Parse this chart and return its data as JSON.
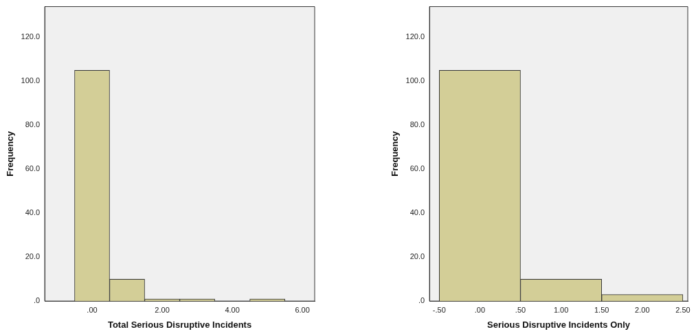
{
  "chart_data": [
    {
      "type": "histogram",
      "xlabel": "Total Serious Disruptive Incidents",
      "ylabel": "Frequency",
      "bins": [
        -0.5,
        0.5,
        1.5,
        2.5,
        3.5,
        4.5,
        5.5
      ],
      "values": [
        105,
        10,
        1,
        1,
        0,
        1
      ],
      "color": "#d3ce97",
      "xlim": [
        -1.35,
        6.35
      ],
      "xticks": [
        {
          "value": 0,
          "label": ".00"
        },
        {
          "value": 2,
          "label": "2.00"
        },
        {
          "value": 4,
          "label": "4.00"
        },
        {
          "value": 6,
          "label": "6.00"
        }
      ],
      "ylim": [
        0,
        134
      ],
      "yticks": [
        {
          "value": 0,
          "label": ".0"
        },
        {
          "value": 20,
          "label": "20.0"
        },
        {
          "value": 40,
          "label": "40.0"
        },
        {
          "value": 60,
          "label": "60.0"
        },
        {
          "value": 80,
          "label": "80.0"
        },
        {
          "value": 100,
          "label": "100.0"
        },
        {
          "value": 120,
          "label": "120.0"
        }
      ],
      "grid": false,
      "legend": false
    },
    {
      "type": "histogram",
      "xlabel": "Serious Disruptive Incidents Only",
      "ylabel": "Frequency",
      "bins": [
        -0.5,
        0.5,
        1.5,
        2.5
      ],
      "values": [
        105,
        10,
        3
      ],
      "color": "#d3ce97",
      "xlim": [
        -0.62,
        2.56
      ],
      "xticks": [
        {
          "value": -0.5,
          "label": "-.50"
        },
        {
          "value": 0,
          "label": ".00"
        },
        {
          "value": 0.5,
          "label": ".50"
        },
        {
          "value": 1,
          "label": "1.00"
        },
        {
          "value": 1.5,
          "label": "1.50"
        },
        {
          "value": 2,
          "label": "2.00"
        },
        {
          "value": 2.5,
          "label": "2.50"
        }
      ],
      "ylim": [
        0,
        134
      ],
      "yticks": [
        {
          "value": 0,
          "label": ".0"
        },
        {
          "value": 20,
          "label": "20.0"
        },
        {
          "value": 40,
          "label": "40.0"
        },
        {
          "value": 60,
          "label": "60.0"
        },
        {
          "value": 80,
          "label": "80.0"
        },
        {
          "value": 100,
          "label": "100.0"
        },
        {
          "value": 120,
          "label": "120.0"
        }
      ],
      "grid": false,
      "legend": false
    }
  ]
}
